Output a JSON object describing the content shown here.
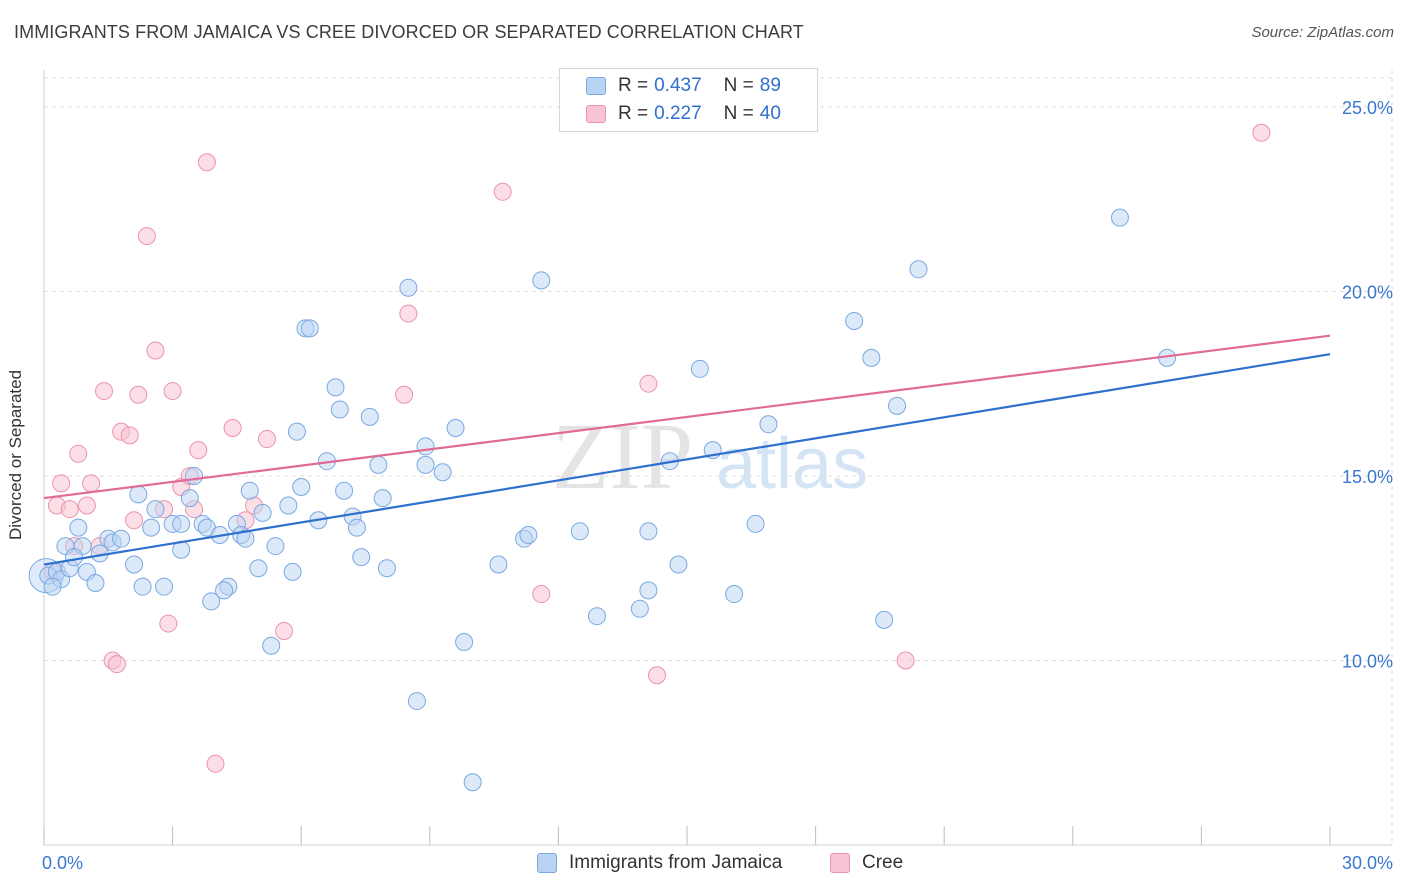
{
  "header": {
    "title": "IMMIGRANTS FROM JAMAICA VS CREE DIVORCED OR SEPARATED CORRELATION CHART",
    "source": "Source: ZipAtlas.com"
  },
  "legend": {
    "rows": [
      {
        "r_label": "R =",
        "r_value": "0.437",
        "n_label": "N =",
        "n_value": "89"
      },
      {
        "r_label": "R =",
        "r_value": "0.227",
        "n_label": "N =",
        "n_value": "40"
      }
    ]
  },
  "colors": {
    "blue_fill": "#b9d3f3",
    "blue_stroke": "#7aa9e2",
    "blue_line": "#2f6fce",
    "pink_fill": "#f8c3d2",
    "pink_stroke": "#ec93ad",
    "pink_line": "#e06c94",
    "grid": "#dcdcdc",
    "axis_text": "#3a78d0"
  },
  "watermark": {
    "zip": "ZIP",
    "atlas": "atlas"
  },
  "chart_data": {
    "type": "scatter",
    "title": "IMMIGRANTS FROM JAMAICA VS CREE DIVORCED OR SEPARATED CORRELATION CHART",
    "xlabel": "",
    "ylabel": "Divorced or Separated",
    "xlim": [
      0,
      30
    ],
    "ylim": [
      5,
      26
    ],
    "x_tick_labels": [
      "0.0%",
      "30.0%"
    ],
    "y_ticks": [
      10,
      15,
      20,
      25
    ],
    "y_tick_labels": [
      "10.0%",
      "15.0%",
      "20.0%",
      "25.0%"
    ],
    "grid": true,
    "legend_position": "top-center",
    "series": [
      {
        "name": "Immigrants from Jamaica",
        "color": "#b9d3f3",
        "trend": {
          "x": [
            0,
            30
          ],
          "y": [
            12.6,
            18.3
          ]
        },
        "points": [
          [
            0.1,
            12.3
          ],
          [
            0.3,
            12.4
          ],
          [
            0.4,
            12.2
          ],
          [
            0.6,
            12.5
          ],
          [
            0.5,
            13.1
          ],
          [
            0.8,
            13.6
          ],
          [
            0.9,
            13.1
          ],
          [
            1.0,
            12.4
          ],
          [
            1.2,
            12.1
          ],
          [
            1.3,
            12.9
          ],
          [
            1.5,
            13.3
          ],
          [
            1.6,
            13.2
          ],
          [
            1.8,
            13.3
          ],
          [
            2.1,
            12.6
          ],
          [
            2.3,
            12.0
          ],
          [
            2.5,
            13.6
          ],
          [
            2.6,
            14.1
          ],
          [
            2.8,
            12.0
          ],
          [
            2.2,
            14.5
          ],
          [
            3.0,
            13.7
          ],
          [
            3.2,
            13.7
          ],
          [
            3.2,
            13.0
          ],
          [
            3.4,
            14.4
          ],
          [
            3.5,
            15.0
          ],
          [
            3.7,
            13.7
          ],
          [
            3.8,
            13.6
          ],
          [
            3.9,
            11.6
          ],
          [
            4.1,
            13.4
          ],
          [
            4.3,
            12.0
          ],
          [
            4.2,
            11.9
          ],
          [
            4.5,
            13.7
          ],
          [
            4.6,
            13.4
          ],
          [
            4.7,
            13.3
          ],
          [
            4.8,
            14.6
          ],
          [
            5.0,
            12.5
          ],
          [
            5.1,
            14.0
          ],
          [
            5.3,
            10.4
          ],
          [
            5.4,
            13.1
          ],
          [
            5.7,
            14.2
          ],
          [
            5.8,
            12.4
          ],
          [
            5.9,
            16.2
          ],
          [
            6.0,
            14.7
          ],
          [
            6.1,
            19.0
          ],
          [
            6.2,
            19.0
          ],
          [
            6.4,
            13.8
          ],
          [
            6.6,
            15.4
          ],
          [
            6.8,
            17.4
          ],
          [
            6.9,
            16.8
          ],
          [
            7.0,
            14.6
          ],
          [
            7.2,
            13.9
          ],
          [
            7.3,
            13.6
          ],
          [
            7.4,
            12.8
          ],
          [
            7.6,
            16.6
          ],
          [
            7.8,
            15.3
          ],
          [
            7.9,
            14.4
          ],
          [
            8.0,
            12.5
          ],
          [
            8.5,
            20.1
          ],
          [
            8.7,
            8.9
          ],
          [
            8.9,
            15.8
          ],
          [
            8.9,
            15.3
          ],
          [
            9.3,
            15.1
          ],
          [
            9.6,
            16.3
          ],
          [
            9.8,
            10.5
          ],
          [
            10.0,
            6.7
          ],
          [
            10.6,
            12.6
          ],
          [
            11.2,
            13.3
          ],
          [
            11.3,
            13.4
          ],
          [
            11.6,
            20.3
          ],
          [
            12.5,
            13.5
          ],
          [
            12.9,
            11.2
          ],
          [
            13.9,
            11.4
          ],
          [
            14.1,
            11.9
          ],
          [
            14.1,
            13.5
          ],
          [
            14.6,
            15.4
          ],
          [
            14.8,
            12.6
          ],
          [
            15.3,
            17.9
          ],
          [
            15.6,
            15.7
          ],
          [
            16.1,
            11.8
          ],
          [
            16.6,
            13.7
          ],
          [
            16.9,
            16.4
          ],
          [
            18.9,
            19.2
          ],
          [
            19.3,
            18.2
          ],
          [
            19.6,
            11.1
          ],
          [
            19.9,
            16.9
          ],
          [
            20.4,
            20.6
          ],
          [
            25.1,
            22.0
          ],
          [
            26.2,
            18.2
          ],
          [
            0.2,
            12.0
          ],
          [
            0.7,
            12.8
          ]
        ]
      },
      {
        "name": "Cree",
        "color": "#f8c3d2",
        "trend": {
          "x": [
            0,
            30
          ],
          "y": [
            14.4,
            18.8
          ]
        },
        "points": [
          [
            0.2,
            12.4
          ],
          [
            0.3,
            14.2
          ],
          [
            0.4,
            14.8
          ],
          [
            0.6,
            14.1
          ],
          [
            0.7,
            13.1
          ],
          [
            0.8,
            15.6
          ],
          [
            1.0,
            14.2
          ],
          [
            1.1,
            14.8
          ],
          [
            1.3,
            13.1
          ],
          [
            1.4,
            17.3
          ],
          [
            1.6,
            10.0
          ],
          [
            1.7,
            9.9
          ],
          [
            1.8,
            16.2
          ],
          [
            2.0,
            16.1
          ],
          [
            2.1,
            13.8
          ],
          [
            2.2,
            17.2
          ],
          [
            2.4,
            21.5
          ],
          [
            2.6,
            18.4
          ],
          [
            2.8,
            14.1
          ],
          [
            2.9,
            11.0
          ],
          [
            3.0,
            17.3
          ],
          [
            3.2,
            14.7
          ],
          [
            3.4,
            15.0
          ],
          [
            3.5,
            14.1
          ],
          [
            3.6,
            15.7
          ],
          [
            3.8,
            23.5
          ],
          [
            4.0,
            7.2
          ],
          [
            4.4,
            16.3
          ],
          [
            4.7,
            13.8
          ],
          [
            4.9,
            14.2
          ],
          [
            5.2,
            16.0
          ],
          [
            5.6,
            10.8
          ],
          [
            8.4,
            17.2
          ],
          [
            8.5,
            19.4
          ],
          [
            10.7,
            22.7
          ],
          [
            11.6,
            11.8
          ],
          [
            14.1,
            17.5
          ],
          [
            14.3,
            9.6
          ],
          [
            20.1,
            10.0
          ],
          [
            28.4,
            24.3
          ]
        ]
      }
    ]
  },
  "bottom_legend": {
    "items": [
      {
        "label": "Immigrants from Jamaica"
      },
      {
        "label": "Cree"
      }
    ]
  }
}
